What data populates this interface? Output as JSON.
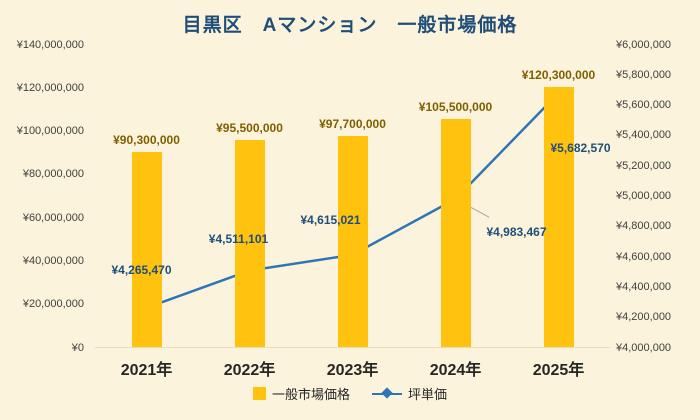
{
  "chart_data": {
    "type": "combo",
    "title": "目黒区　Aマンション　一般市場価格",
    "categories": [
      "2021年",
      "2022年",
      "2023年",
      "2024年",
      "2025年"
    ],
    "series": [
      {
        "name": "一般市場価格",
        "type": "bar",
        "axis": "left",
        "values": [
          90300000,
          95500000,
          97700000,
          105500000,
          120300000
        ],
        "labels": [
          "¥90,300,000",
          "¥95,500,000",
          "¥97,700,000",
          "¥105,500,000",
          "¥120,300,000"
        ],
        "color": "#FFC20E",
        "label_color": "#7F6000"
      },
      {
        "name": "坪単価",
        "type": "line",
        "axis": "right",
        "values": [
          4265470,
          4511101,
          4615021,
          4983467,
          5682570
        ],
        "labels": [
          "¥4,265,470",
          "¥4,511,101",
          "¥4,615,021",
          "¥4,983,467",
          "¥5,682,570"
        ],
        "color": "#2E75B6",
        "label_color": "#1F4E79"
      }
    ],
    "left_axis": {
      "min": 0,
      "max": 140000000,
      "ticks": [
        "¥0",
        "¥20,000,000",
        "¥40,000,000",
        "¥60,000,000",
        "¥80,000,000",
        "¥100,000,000",
        "¥120,000,000",
        "¥140,000,000"
      ]
    },
    "right_axis": {
      "min": 4000000,
      "max": 6000000,
      "ticks": [
        "¥4,000,000",
        "¥4,200,000",
        "¥4,400,000",
        "¥4,600,000",
        "¥4,800,000",
        "¥5,000,000",
        "¥5,200,000",
        "¥5,400,000",
        "¥5,600,000",
        "¥5,800,000",
        "¥6,000,000"
      ]
    },
    "legend": [
      {
        "label": "一般市場価格",
        "swatch": "bar"
      },
      {
        "label": "坪単価",
        "swatch": "line"
      }
    ],
    "colors": {
      "background": "#FBF3DB",
      "bar": "#FFC20E",
      "line": "#2E75B6",
      "title": "#1F4E79",
      "leader_line": "#A6A6A6"
    },
    "legend_position": "bottom",
    "grid": false
  }
}
